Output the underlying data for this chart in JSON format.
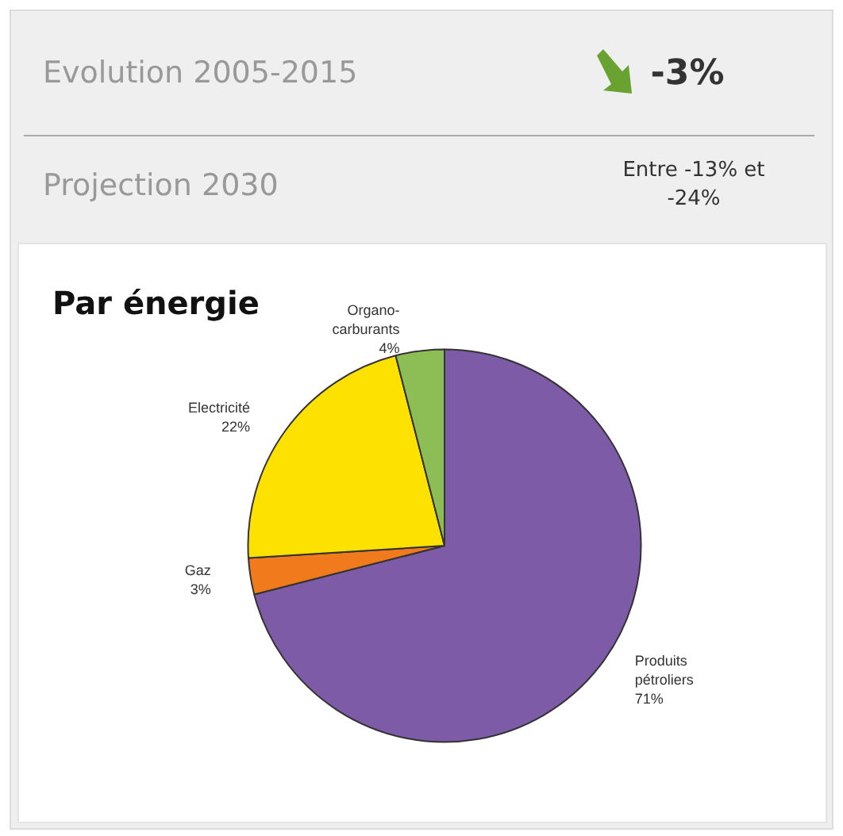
{
  "chart_data": {
    "type": "pie",
    "title": "Par énergie",
    "annotations": [
      "Evolution 2005-2015",
      "-3%",
      "Projection 2030",
      "Entre -13% et -24%"
    ],
    "categories": [
      "Produits pétroliers",
      "Gaz",
      "Electricité",
      "Organo-carburants"
    ],
    "values": [
      71,
      3,
      22,
      4
    ],
    "colors": [
      "#7d5ba6",
      "#f07a1c",
      "#fde100",
      "#8dbd55"
    ],
    "value_labels": [
      "71%",
      "3%",
      "22%",
      "4%"
    ],
    "legend": false
  }
}
